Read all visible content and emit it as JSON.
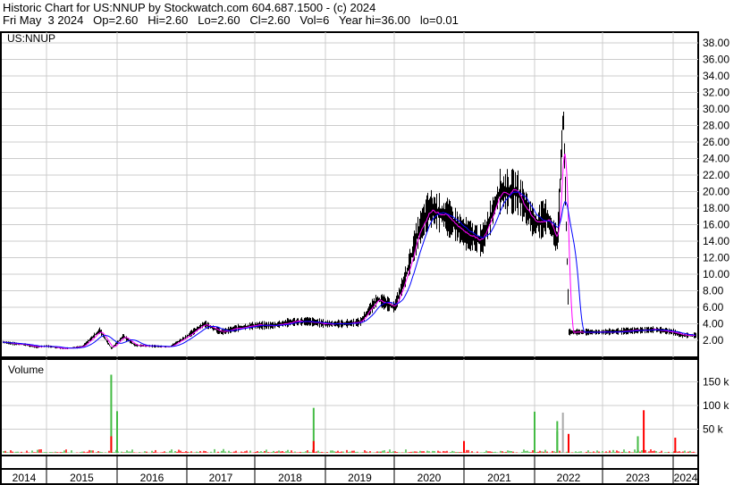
{
  "header": {
    "line1": "Historic Chart for US:NNUP by Stockwatch.com 604.687.1500 - (c) 2024",
    "line2": "Fri May  3 2024   Op=2.60   Hi=2.60   Lo=2.60   Cl=2.60   Vol=6   Year hi=36.00   lo=0.01"
  },
  "chart_data": [
    {
      "type": "line",
      "title": "US:NNUP",
      "ylim": [
        0,
        38
      ],
      "yticks": [
        "2.00",
        "4.00",
        "6.00",
        "8.00",
        "10.00",
        "12.00",
        "14.00",
        "16.00",
        "18.00",
        "20.00",
        "22.00",
        "24.00",
        "26.00",
        "28.00",
        "30.00",
        "32.00",
        "34.00",
        "36.00",
        "38.00"
      ],
      "grid": true,
      "series": [
        {
          "x": [
            "2014-01",
            "2014-04",
            "2014-07",
            "2014-10",
            "2015-01",
            "2015-04",
            "2015-07",
            "2015-10",
            "2015-12",
            "2016-02",
            "2016-04",
            "2016-07",
            "2016-10",
            "2017-01",
            "2017-04",
            "2017-07",
            "2017-10",
            "2018-01",
            "2018-04",
            "2018-07",
            "2018-10",
            "2019-01",
            "2019-04",
            "2019-07",
            "2019-10",
            "2020-01",
            "2020-03",
            "2020-05",
            "2020-07",
            "2020-10",
            "2021-01",
            "2021-04",
            "2021-07",
            "2021-10",
            "2022-01",
            "2022-03",
            "2022-05",
            "2022-06",
            "2022-07",
            "2022-10",
            "2023-01",
            "2023-04",
            "2023-07",
            "2023-10",
            "2024-01",
            "2024-05"
          ],
          "y": [
            1.8,
            1.6,
            1.5,
            1.2,
            1.3,
            1.0,
            1.2,
            3.2,
            1.0,
            2.5,
            1.4,
            1.3,
            1.2,
            2.5,
            4.0,
            3.0,
            3.5,
            3.8,
            3.8,
            4.2,
            4.3,
            4.0,
            4.0,
            4.2,
            7.0,
            6.0,
            10,
            15,
            18,
            17,
            15,
            14,
            20,
            20,
            16,
            17,
            14,
            30,
            3.0,
            3.0,
            3.0,
            3.1,
            3.2,
            3.3,
            3.0,
            2.6
          ],
          "color": "#000000"
        }
      ],
      "moving_average_colors": [
        "#ff00ff",
        "#0000ff"
      ]
    },
    {
      "type": "bar",
      "title": "Volume",
      "yticks": [
        "50 k",
        "100 k",
        "150 k"
      ],
      "ylim": [
        0,
        200000
      ],
      "x_labels": [
        "2014",
        "2015",
        "2016",
        "2017",
        "2018",
        "2019",
        "2020",
        "2021",
        "2022",
        "2023",
        "2024"
      ],
      "spikes": [
        {
          "x": "2015-12",
          "value": 165000,
          "color": "#44bb44"
        },
        {
          "x": "2015-12",
          "value": 35000,
          "color": "#ff0000"
        },
        {
          "x": "2016-01",
          "value": 88000,
          "color": "#44bb44"
        },
        {
          "x": "2018-11",
          "value": 95000,
          "color": "#44bb44"
        },
        {
          "x": "2018-11",
          "value": 25000,
          "color": "#ff0000"
        },
        {
          "x": "2021-01",
          "value": 25000,
          "color": "#ff0000"
        },
        {
          "x": "2022-01",
          "value": 87000,
          "color": "#44bb44"
        },
        {
          "x": "2022-05",
          "value": 67000,
          "color": "#44bb44"
        },
        {
          "x": "2022-05",
          "value": 45000,
          "color": "#44bb44"
        },
        {
          "x": "2022-06",
          "value": 85000,
          "color": "#aaaaaa"
        },
        {
          "x": "2022-07",
          "value": 40000,
          "color": "#ff0000"
        },
        {
          "x": "2023-08",
          "value": 90000,
          "color": "#ff0000"
        },
        {
          "x": "2023-07",
          "value": 35000,
          "color": "#44bb44"
        },
        {
          "x": "2024-02",
          "value": 32000,
          "color": "#ff0000"
        }
      ]
    }
  ]
}
